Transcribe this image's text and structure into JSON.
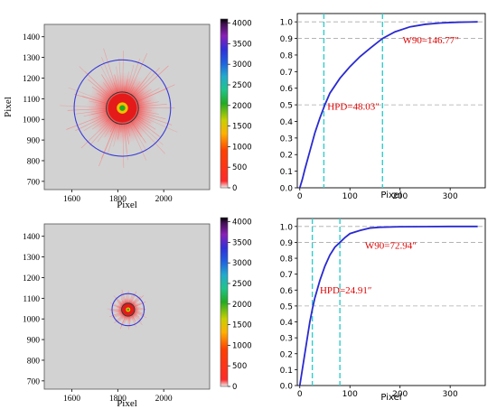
{
  "chart_data": [
    {
      "type": "heatmap",
      "panel": "top-left",
      "xlabel": "Pixel",
      "ylabel": "Pixel",
      "xlim": [
        1480,
        2200
      ],
      "ylim": [
        660,
        1460
      ],
      "xticks": [
        1600,
        1800,
        2000
      ],
      "yticks": [
        700,
        800,
        900,
        1000,
        1100,
        1200,
        1300,
        1400
      ],
      "spot_center": [
        1820,
        1055
      ],
      "circle_radii": [
        210,
        70
      ],
      "colorbar": {
        "min": 0,
        "max": 4100,
        "ticks": [
          0,
          500,
          1000,
          1500,
          2000,
          2500,
          3000,
          3500,
          4000
        ]
      }
    },
    {
      "type": "line",
      "panel": "top-right",
      "xlabel": "Pixel",
      "ylabel": "",
      "xlim": [
        -5,
        370
      ],
      "ylim": [
        0,
        1.05
      ],
      "xticks": [
        0,
        100,
        200,
        300
      ],
      "yticks": [
        0.0,
        0.1,
        0.2,
        0.3,
        0.4,
        0.5,
        0.6,
        0.7,
        0.8,
        0.9,
        1.0
      ],
      "series": [
        {
          "x": [
            0,
            5,
            10,
            20,
            30,
            40,
            50,
            60,
            80,
            100,
            120,
            140,
            165,
            190,
            220,
            250,
            280,
            300,
            320,
            340,
            355
          ],
          "y": [
            0,
            0.05,
            0.11,
            0.22,
            0.33,
            0.42,
            0.5,
            0.57,
            0.66,
            0.73,
            0.79,
            0.84,
            0.9,
            0.94,
            0.97,
            0.985,
            0.993,
            0.996,
            0.998,
            0.999,
            1.0
          ]
        }
      ],
      "vlines": [
        48,
        165
      ],
      "hlines": [
        0.5,
        0.9
      ],
      "annotations": [
        {
          "text": "HPD=48.03″",
          "x": 55,
          "y": 0.47
        },
        {
          "text": "W90=146.77″",
          "x": 205,
          "y": 0.87
        }
      ]
    },
    {
      "type": "heatmap",
      "panel": "bottom-left",
      "xlabel": "Pixel",
      "ylabel": "",
      "xlim": [
        1480,
        2200
      ],
      "ylim": [
        660,
        1460
      ],
      "xticks": [
        1600,
        1800,
        2000
      ],
      "yticks": [
        700,
        800,
        900,
        1000,
        1100,
        1200,
        1300,
        1400
      ],
      "spot_center": [
        1845,
        1045
      ],
      "circle_radii": [
        70,
        28
      ],
      "colorbar": {
        "min": 0,
        "max": 4100,
        "ticks": [
          0,
          500,
          1000,
          1500,
          2000,
          2500,
          3000,
          3500,
          4000
        ]
      }
    },
    {
      "type": "line",
      "panel": "bottom-right",
      "xlabel": "Pixel",
      "ylabel": "",
      "xlim": [
        -5,
        370
      ],
      "ylim": [
        0,
        1.05
      ],
      "xticks": [
        0,
        100,
        200,
        300
      ],
      "yticks": [
        0.0,
        0.1,
        0.2,
        0.3,
        0.4,
        0.5,
        0.6,
        0.7,
        0.8,
        0.9,
        1.0
      ],
      "series": [
        {
          "x": [
            0,
            5,
            10,
            15,
            20,
            25,
            30,
            40,
            50,
            60,
            70,
            80,
            90,
            100,
            120,
            140,
            160,
            200,
            250,
            300,
            355
          ],
          "y": [
            0,
            0.1,
            0.2,
            0.3,
            0.4,
            0.48,
            0.55,
            0.66,
            0.75,
            0.82,
            0.87,
            0.9,
            0.93,
            0.955,
            0.975,
            0.99,
            0.995,
            0.998,
            0.999,
            1.0,
            1.0
          ]
        }
      ],
      "vlines": [
        25,
        80
      ],
      "hlines": [
        0.5,
        0.9
      ],
      "annotations": [
        {
          "text": "HPD=24.91″",
          "x": 40,
          "y": 0.58
        },
        {
          "text": "W90=72.94″",
          "x": 130,
          "y": 0.86
        }
      ]
    }
  ],
  "colors": {
    "background_field": "#d2d2d2",
    "circle": "#3b3bd6",
    "curve": "#2a2ad0",
    "marker_line": "#33cccc",
    "annotation": "#e00000",
    "grid": "#aaaaaa"
  }
}
